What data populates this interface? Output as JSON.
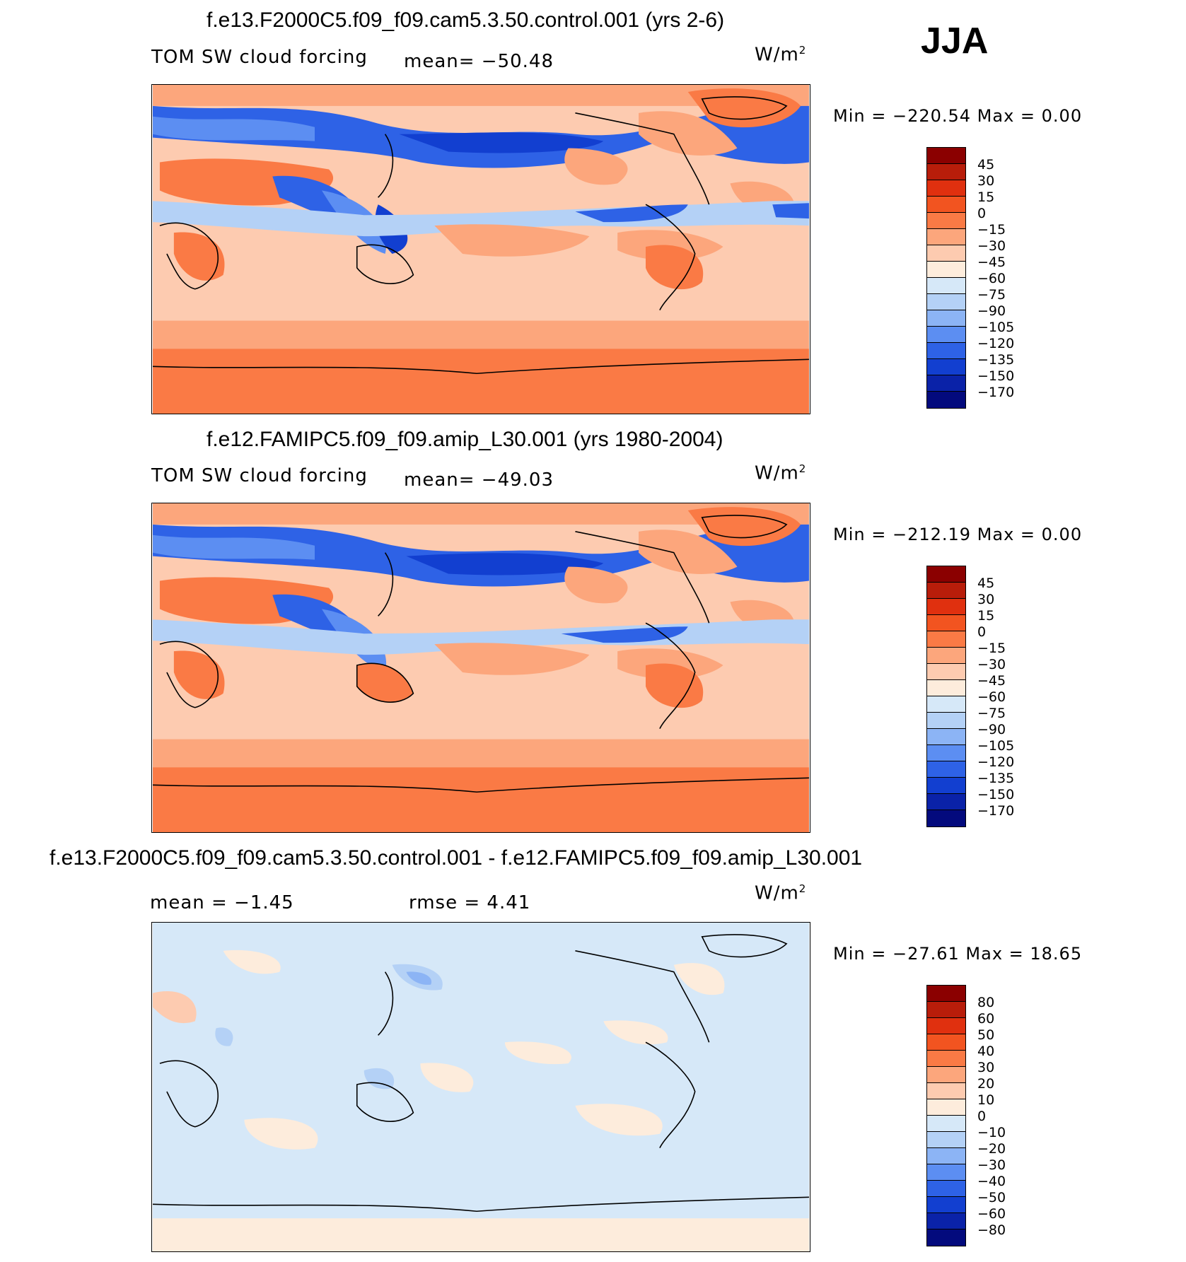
{
  "season": "JJA",
  "panels": [
    {
      "title": "f.e13.F2000C5.f09_f09.cam5.3.50.control.001 (yrs 2-6)",
      "field": "TOM SW cloud forcing",
      "mean_label": "mean= −50.48",
      "unit": "W/m",
      "unit_exp": "2",
      "minmax": "Min = −220.54 Max =   0.00",
      "colorbar": {
        "levels": [
          "45",
          "30",
          "15",
          "0",
          "−15",
          "−30",
          "−45",
          "−60",
          "−75",
          "−90",
          "−105",
          "−120",
          "−135",
          "−150",
          "−170"
        ],
        "colors": [
          "#8b0000",
          "#b81d0a",
          "#e0300f",
          "#f25420",
          "#fa7a45",
          "#fca67c",
          "#fdcbb0",
          "#fdecdc",
          "#d6e8f8",
          "#b4d1f6",
          "#8cb4f5",
          "#5c8ef2",
          "#2e62e6",
          "#123fd0",
          "#0a22a8",
          "#030a7d"
        ]
      },
      "map_icon": "contour-map-swcf-control"
    },
    {
      "title": "f.e12.FAMIPC5.f09_f09.amip_L30.001 (yrs 1980-2004)",
      "field": "TOM SW cloud forcing",
      "mean_label": "mean= −49.03",
      "unit": "W/m",
      "unit_exp": "2",
      "minmax": "Min = −212.19 Max =   0.00",
      "colorbar": {
        "levels": [
          "45",
          "30",
          "15",
          "0",
          "−15",
          "−30",
          "−45",
          "−60",
          "−75",
          "−90",
          "−105",
          "−120",
          "−135",
          "−150",
          "−170"
        ],
        "colors": [
          "#8b0000",
          "#b81d0a",
          "#e0300f",
          "#f25420",
          "#fa7a45",
          "#fca67c",
          "#fdcbb0",
          "#fdecdc",
          "#d6e8f8",
          "#b4d1f6",
          "#8cb4f5",
          "#5c8ef2",
          "#2e62e6",
          "#123fd0",
          "#0a22a8",
          "#030a7d"
        ]
      },
      "map_icon": "contour-map-swcf-amip"
    },
    {
      "title": "f.e13.F2000C5.f09_f09.cam5.3.50.control.001 - f.e12.FAMIPC5.f09_f09.amip_L30.001",
      "mean_label": "mean =   −1.45",
      "rmse_label": "rmse =    4.41",
      "unit": "W/m",
      "unit_exp": "2",
      "minmax": "Min = −27.61 Max =  18.65",
      "colorbar": {
        "levels": [
          "80",
          "60",
          "50",
          "40",
          "30",
          "20",
          "10",
          "0",
          "−10",
          "−20",
          "−30",
          "−40",
          "−50",
          "−60",
          "−80"
        ],
        "colors": [
          "#8b0000",
          "#b81d0a",
          "#e0300f",
          "#f25420",
          "#fa7a45",
          "#fca67c",
          "#fdcbb0",
          "#fdecdc",
          "#d6e8f8",
          "#b4d1f6",
          "#8cb4f5",
          "#5c8ef2",
          "#2e62e6",
          "#123fd0",
          "#0a22a8",
          "#030a7d"
        ]
      },
      "map_icon": "contour-map-swcf-difference"
    }
  ]
}
